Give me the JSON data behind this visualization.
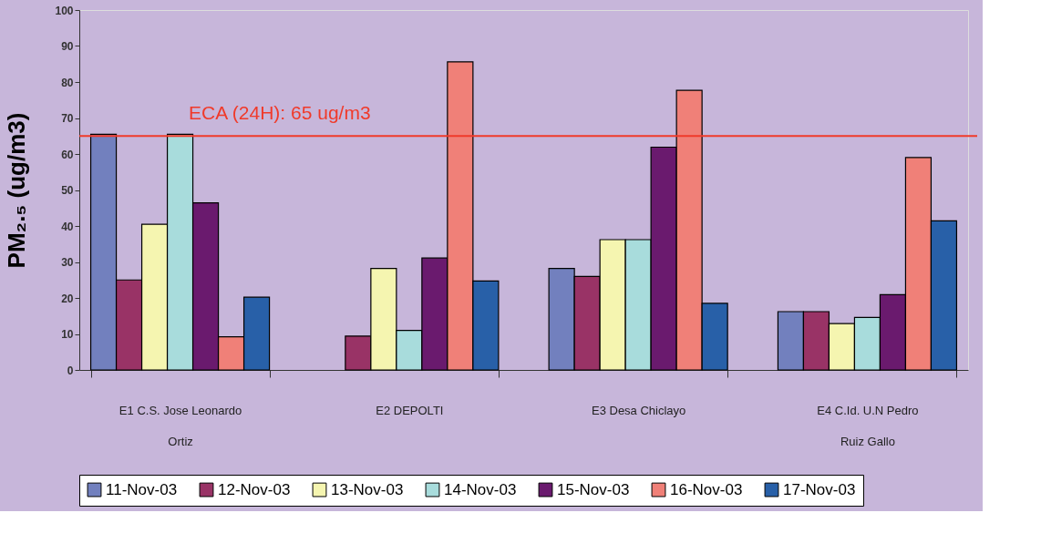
{
  "chart_data": {
    "type": "bar",
    "ylabel": "PM₂.₅ (ug/m3)",
    "categories": [
      "E1 C.S. Jose Leonardo\nOrtiz",
      "E2 DEPOLTI",
      "E3 Desa Chiclayo",
      "E4 C.Id. U.N Pedro\nRuiz Gallo"
    ],
    "series": [
      {
        "name": "11-Nov-03",
        "color": "#7280be",
        "values": [
          65.5,
          null,
          28.2,
          16.2
        ]
      },
      {
        "name": "12-Nov-03",
        "color": "#993366",
        "values": [
          25,
          9.4,
          26,
          16.2
        ]
      },
      {
        "name": "13-Nov-03",
        "color": "#f5f5b0",
        "values": [
          40.5,
          28.2,
          36.2,
          12.9
        ]
      },
      {
        "name": "14-Nov-03",
        "color": "#a8dcdc",
        "values": [
          65.5,
          11,
          36.2,
          14.6
        ]
      },
      {
        "name": "15-Nov-03",
        "color": "#6a1a6e",
        "values": [
          46.4,
          31.1,
          61.9,
          20.9
        ]
      },
      {
        "name": "16-Nov-03",
        "color": "#f08078",
        "values": [
          9.2,
          85.6,
          77.7,
          59
        ]
      },
      {
        "name": "17-Nov-03",
        "color": "#2860a8",
        "values": [
          20.2,
          24.7,
          18.5,
          41.4
        ]
      }
    ],
    "ylim": [
      0,
      100
    ],
    "yticks": [
      0,
      10,
      20,
      30,
      40,
      50,
      60,
      70,
      80,
      90,
      100
    ],
    "ref_lines": [
      {
        "axis": "y",
        "value": 65,
        "label": "ECA (24H): 65 ug/m3",
        "color": "#f03a2a"
      }
    ],
    "grid": false,
    "legend": "bottom"
  }
}
